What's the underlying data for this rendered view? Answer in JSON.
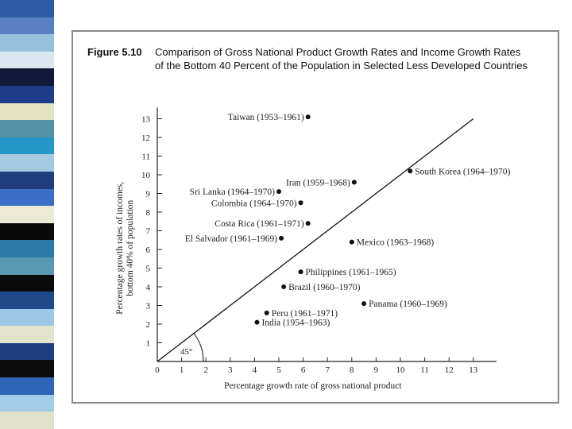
{
  "colors": {
    "stripes": [
      "#2e5ba6",
      "#5a7fc4",
      "#96c3dc",
      "#d9e7f0",
      "#0f1a3a",
      "#1d3d8a",
      "#e4e4c4",
      "#5592a8",
      "#2496c8",
      "#a6c9e2",
      "#1f3c7d",
      "#3d6ec6",
      "#ecead4",
      "#0a0a0a",
      "#2a7ca6",
      "#5a97b4",
      "#0b0b0b",
      "#1e4a8a",
      "#9ac8e6",
      "#e2e4cc",
      "#1c3e80",
      "#0c0c0c",
      "#2f64b6",
      "#a2cde6",
      "#dfe2c8"
    ],
    "ink": "#111111"
  },
  "figure": {
    "label": "Figure 5.10",
    "title": "Comparison of Gross National Product Growth Rates and Income Growth Rates of the Bottom 40 Percent of the Population in Selected Less Developed Countries"
  },
  "chart_data": {
    "type": "scatter",
    "xlabel": "Percentage growth rate of gross national product",
    "ylabel_line1": "Percentage growth rates of incomes,",
    "ylabel_line2": "bottom 40% of population",
    "xlim": [
      0,
      14
    ],
    "ylim": [
      0,
      14
    ],
    "x_ticks": [
      0,
      1,
      2,
      3,
      4,
      5,
      6,
      7,
      8,
      9,
      10,
      11,
      12,
      13
    ],
    "y_ticks": [
      1,
      2,
      3,
      4,
      5,
      6,
      7,
      8,
      9,
      10,
      11,
      12,
      13
    ],
    "reference_line": {
      "slope": 1,
      "intercept": 0,
      "x_end": 13,
      "angle_label": "45°"
    },
    "grid": false,
    "points": [
      {
        "label": "Taiwan (1953–1961)",
        "x": 6.2,
        "y": 13.1,
        "label_side": "left"
      },
      {
        "label": "South Korea (1964–1970)",
        "x": 10.4,
        "y": 10.2,
        "label_side": "right"
      },
      {
        "label": "Iran (1959–1968)",
        "x": 8.1,
        "y": 9.6,
        "label_side": "left"
      },
      {
        "label": "Sri Lanka (1964–1970)",
        "x": 5.0,
        "y": 9.1,
        "label_side": "left"
      },
      {
        "label": "Colombia (1964–1970)",
        "x": 5.9,
        "y": 8.5,
        "label_side": "left"
      },
      {
        "label": "Costa Rica (1961–1971)",
        "x": 6.2,
        "y": 7.4,
        "label_side": "left"
      },
      {
        "label": "El Salvador (1961–1969)",
        "x": 5.1,
        "y": 6.6,
        "label_side": "left"
      },
      {
        "label": "Mexico (1963–1968)",
        "x": 8.0,
        "y": 6.4,
        "label_side": "right"
      },
      {
        "label": "Philippines (1961–1965)",
        "x": 5.9,
        "y": 4.8,
        "label_side": "right"
      },
      {
        "label": "Brazil (1960–1970)",
        "x": 5.2,
        "y": 4.0,
        "label_side": "right"
      },
      {
        "label": "Panama (1960–1969)",
        "x": 8.5,
        "y": 3.1,
        "label_side": "right"
      },
      {
        "label": "Peru (1961–1971)",
        "x": 4.5,
        "y": 2.6,
        "label_side": "right"
      },
      {
        "label": "India (1954–1963)",
        "x": 4.1,
        "y": 2.1,
        "label_side": "right"
      }
    ]
  }
}
